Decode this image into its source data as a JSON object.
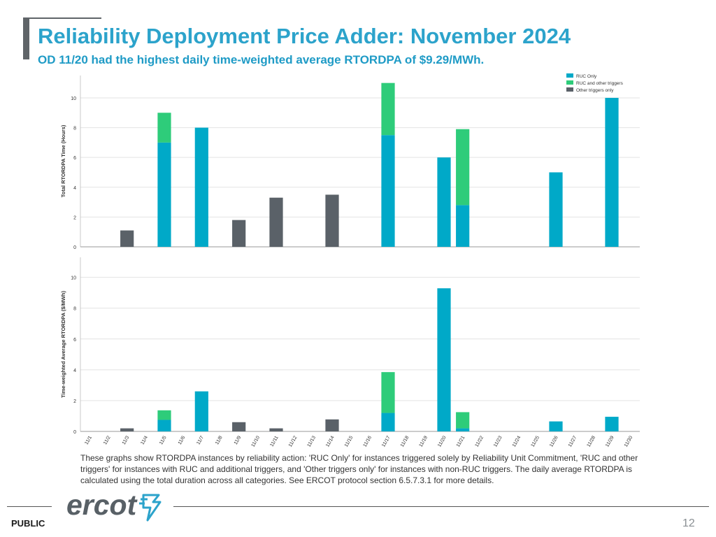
{
  "slide": {
    "title": "Reliability Deployment Price Adder: November 2024",
    "subtitle": "OD 11/20 had the highest daily time-weighted average RTORDPA of $9.29/MWh.",
    "note": "These graphs show RTORDPA instances by reliability action: 'RUC Only' for instances triggered solely by Reliability Unit Commitment, 'RUC and other triggers' for instances with RUC and additional triggers, and 'Other triggers only' for instances with non-RUC triggers. The daily average RTORDPA is calculated using the total duration across all categories. See ERCOT protocol section 6.5.7.3.1 for more details.",
    "footer_label": "PUBLIC",
    "page_number": "12",
    "logo_text": "ercot"
  },
  "colors": {
    "ruc_only": "#00a9c8",
    "ruc_other": "#2ecc7a",
    "other_only": "#5a6168",
    "title": "#2ca3cb",
    "grid": "#e3e3e3"
  },
  "chart_data": [
    {
      "type": "bar",
      "stacked": true,
      "ylabel": "Total RTORDPA Time (Hours)",
      "ylim": [
        0,
        11.5
      ],
      "yticks": [
        0,
        2,
        4,
        6,
        8,
        10
      ],
      "grid": true,
      "legend": "top-right",
      "categories": [
        "11/1",
        "11/2",
        "11/3",
        "11/4",
        "11/5",
        "11/6",
        "11/7",
        "11/8",
        "11/9",
        "11/10",
        "11/11",
        "11/12",
        "11/13",
        "11/14",
        "11/15",
        "11/16",
        "11/17",
        "11/18",
        "11/19",
        "11/20",
        "11/21",
        "11/22",
        "11/23",
        "11/24",
        "11/25",
        "11/26",
        "11/27",
        "11/28",
        "11/29",
        "11/30"
      ],
      "series": [
        {
          "name": "RUC Only",
          "values": [
            0,
            0,
            0,
            0,
            7,
            0,
            8,
            0,
            0,
            0,
            0,
            0,
            0,
            0,
            0,
            0,
            7.5,
            0,
            0,
            6,
            2.8,
            0,
            0,
            0,
            0,
            5,
            0,
            0,
            10,
            0
          ]
        },
        {
          "name": "RUC and other triggers",
          "values": [
            0,
            0,
            0,
            0,
            2,
            0,
            0,
            0,
            0,
            0,
            0,
            0,
            0,
            0,
            0,
            0,
            3.5,
            0,
            0,
            0,
            5.1,
            0,
            0,
            0,
            0,
            0,
            0,
            0,
            0,
            0
          ]
        },
        {
          "name": "Other triggers only",
          "values": [
            0,
            0,
            1.1,
            0,
            0,
            0,
            0,
            0,
            1.8,
            0,
            3.3,
            0,
            0,
            3.5,
            0,
            0,
            0,
            0,
            0,
            0,
            0,
            0,
            0,
            0,
            0,
            0,
            0,
            0,
            0,
            0
          ]
        }
      ]
    },
    {
      "type": "bar",
      "stacked": true,
      "ylabel": "Time-weighted Average RTORDPA ($/MWh)",
      "ylim": [
        0,
        11.3
      ],
      "yticks": [
        0,
        2,
        4,
        6,
        8,
        10
      ],
      "grid": true,
      "categories": [
        "11/1",
        "11/2",
        "11/3",
        "11/4",
        "11/5",
        "11/6",
        "11/7",
        "11/8",
        "11/9",
        "11/10",
        "11/11",
        "11/12",
        "11/13",
        "11/14",
        "11/15",
        "11/16",
        "11/17",
        "11/18",
        "11/19",
        "11/20",
        "11/21",
        "11/22",
        "11/23",
        "11/24",
        "11/25",
        "11/26",
        "11/27",
        "11/28",
        "11/29",
        "11/30"
      ],
      "series": [
        {
          "name": "RUC Only",
          "values": [
            0,
            0,
            0,
            0,
            0.75,
            0,
            2.6,
            0,
            0,
            0,
            0,
            0,
            0,
            0,
            0,
            0,
            1.2,
            0,
            0,
            9.29,
            0.2,
            0,
            0,
            0,
            0,
            0.65,
            0,
            0,
            0.95,
            0
          ]
        },
        {
          "name": "RUC and other triggers",
          "values": [
            0,
            0,
            0,
            0,
            0.62,
            0,
            0,
            0,
            0,
            0,
            0,
            0,
            0,
            0,
            0,
            0,
            2.65,
            0,
            0,
            0,
            1.05,
            0,
            0,
            0,
            0,
            0,
            0,
            0,
            0,
            0
          ]
        },
        {
          "name": "Other triggers only",
          "values": [
            0,
            0,
            0.2,
            0,
            0,
            0,
            0,
            0,
            0.6,
            0,
            0.2,
            0,
            0,
            0.78,
            0,
            0,
            0,
            0,
            0,
            0,
            0,
            0,
            0,
            0,
            0,
            0,
            0,
            0,
            0,
            0
          ]
        }
      ]
    }
  ]
}
